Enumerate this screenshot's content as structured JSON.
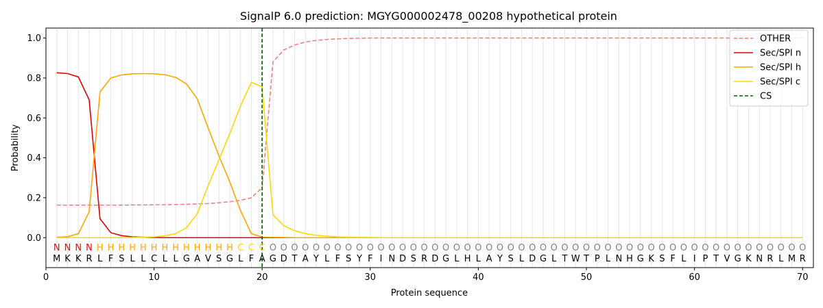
{
  "chart_data": {
    "type": "line",
    "title": "SignalP 6.0 prediction: MGYG000002478_00208 hypothetical protein",
    "xlabel": "Protein sequence",
    "ylabel": "Probability",
    "xlim": [
      0,
      71
    ],
    "ylim": [
      -0.15,
      1.05
    ],
    "x_ticks": [
      0,
      10,
      20,
      30,
      40,
      50,
      60,
      70
    ],
    "y_ticks": [
      0.0,
      0.2,
      0.4,
      0.6,
      0.8,
      1.0
    ],
    "x_tick_labels": [
      "0",
      "10",
      "20",
      "30",
      "40",
      "50",
      "60",
      "70"
    ],
    "y_tick_labels": [
      "0.0",
      "0.2",
      "0.4",
      "0.6",
      "0.8",
      "1.0"
    ],
    "grid": "vertical lines at each residue",
    "legend_position": "top-right",
    "sequence": [
      "M",
      "K",
      "K",
      "R",
      "L",
      "F",
      "S",
      "L",
      "L",
      "C",
      "L",
      "L",
      "G",
      "A",
      "V",
      "S",
      "G",
      "L",
      "F",
      "A",
      "G",
      "D",
      "T",
      "A",
      "Y",
      "L",
      "F",
      "S",
      "Y",
      "F",
      "I",
      "N",
      "D",
      "S",
      "R",
      "D",
      "G",
      "L",
      "H",
      "L",
      "A",
      "Y",
      "S",
      "L",
      "D",
      "G",
      "L",
      "T",
      "W",
      "T",
      "P",
      "L",
      "N",
      "H",
      "G",
      "K",
      "S",
      "F",
      "L",
      "I",
      "P",
      "T",
      "V",
      "G",
      "K",
      "N",
      "R",
      "L",
      "M",
      "R"
    ],
    "labels": [
      "N",
      "N",
      "N",
      "N",
      "H",
      "H",
      "H",
      "H",
      "H",
      "H",
      "H",
      "H",
      "H",
      "H",
      "H",
      "H",
      "H",
      "C",
      "C",
      "C",
      "O",
      "O",
      "O",
      "O",
      "O",
      "O",
      "O",
      "O",
      "O",
      "O",
      "O",
      "O",
      "O",
      "O",
      "O",
      "O",
      "O",
      "O",
      "O",
      "O",
      "O",
      "O",
      "O",
      "O",
      "O",
      "O",
      "O",
      "O",
      "O",
      "O",
      "O",
      "O",
      "O",
      "O",
      "O",
      "O",
      "O",
      "O",
      "O",
      "O",
      "O",
      "O",
      "O",
      "O",
      "O",
      "O",
      "O",
      "O",
      "O",
      "O"
    ],
    "label_colors": {
      "N": "#ff0000",
      "H": "#ffa500",
      "C": "#ffd700",
      "O": "#808080"
    },
    "cleavage_site": 20,
    "series": [
      {
        "name": "OTHER",
        "color": "#f08080",
        "style": "dashed",
        "values": [
          0.163,
          0.163,
          0.163,
          0.163,
          0.163,
          0.163,
          0.163,
          0.164,
          0.164,
          0.165,
          0.165,
          0.166,
          0.167,
          0.169,
          0.171,
          0.175,
          0.18,
          0.187,
          0.2,
          0.25,
          0.88,
          0.94,
          0.965,
          0.98,
          0.988,
          0.993,
          0.996,
          0.998,
          0.999,
          1.0,
          1.0,
          1.0,
          1.0,
          1.0,
          1.0,
          1.0,
          1.0,
          1.0,
          1.0,
          1.0,
          1.0,
          1.0,
          1.0,
          1.0,
          1.0,
          1.0,
          1.0,
          1.0,
          1.0,
          1.0,
          1.0,
          1.0,
          1.0,
          1.0,
          1.0,
          1.0,
          1.0,
          1.0,
          1.0,
          1.0,
          1.0,
          1.0,
          1.0,
          1.0,
          1.0,
          1.0,
          1.0,
          1.0,
          1.0,
          1.0
        ]
      },
      {
        "name": "Sec/SPI n",
        "color": "#e00000",
        "style": "solid",
        "values": [
          0.826,
          0.822,
          0.805,
          0.69,
          0.095,
          0.025,
          0.01,
          0.004,
          0.002,
          0.001,
          0.0,
          0.0,
          0.0,
          0.0,
          0.0,
          0.0,
          0.0,
          0.0,
          0.0,
          0.0,
          0.0,
          0.0,
          0.0,
          0.0,
          0.0,
          0.0,
          0.0,
          0.0,
          0.0,
          0.0,
          0.0,
          0.0,
          0.0,
          0.0,
          0.0,
          0.0,
          0.0,
          0.0,
          0.0,
          0.0,
          0.0,
          0.0,
          0.0,
          0.0,
          0.0,
          0.0,
          0.0,
          0.0,
          0.0,
          0.0,
          0.0,
          0.0,
          0.0,
          0.0,
          0.0,
          0.0,
          0.0,
          0.0,
          0.0,
          0.0,
          0.0,
          0.0,
          0.0,
          0.0,
          0.0,
          0.0,
          0.0,
          0.0,
          0.0,
          0.0
        ]
      },
      {
        "name": "Sec/SPI h",
        "color": "#ffa500",
        "style": "solid",
        "values": [
          0.002,
          0.005,
          0.02,
          0.13,
          0.73,
          0.8,
          0.815,
          0.821,
          0.822,
          0.821,
          0.816,
          0.803,
          0.77,
          0.695,
          0.55,
          0.41,
          0.28,
          0.135,
          0.02,
          0.003,
          0.002,
          0.001,
          0.0,
          0.0,
          0.0,
          0.0,
          0.0,
          0.0,
          0.0,
          0.0,
          0.0,
          0.0,
          0.0,
          0.0,
          0.0,
          0.0,
          0.0,
          0.0,
          0.0,
          0.0,
          0.0,
          0.0,
          0.0,
          0.0,
          0.0,
          0.0,
          0.0,
          0.0,
          0.0,
          0.0,
          0.0,
          0.0,
          0.0,
          0.0,
          0.0,
          0.0,
          0.0,
          0.0,
          0.0,
          0.0,
          0.0,
          0.0,
          0.0,
          0.0,
          0.0,
          0.0,
          0.0,
          0.0,
          0.0,
          0.0
        ]
      },
      {
        "name": "Sec/SPI c",
        "color": "#ffd700",
        "style": "solid",
        "values": [
          0.0,
          0.0,
          0.0,
          0.0,
          0.0,
          0.0,
          0.0,
          0.001,
          0.002,
          0.004,
          0.009,
          0.02,
          0.05,
          0.12,
          0.26,
          0.39,
          0.52,
          0.66,
          0.778,
          0.755,
          0.115,
          0.06,
          0.035,
          0.02,
          0.012,
          0.007,
          0.004,
          0.002,
          0.001,
          0.001,
          0.0,
          0.0,
          0.0,
          0.0,
          0.0,
          0.0,
          0.0,
          0.0,
          0.0,
          0.0,
          0.0,
          0.0,
          0.0,
          0.0,
          0.0,
          0.0,
          0.0,
          0.0,
          0.0,
          0.0,
          0.0,
          0.0,
          0.0,
          0.0,
          0.0,
          0.0,
          0.0,
          0.0,
          0.0,
          0.0,
          0.0,
          0.0,
          0.0,
          0.0,
          0.0,
          0.0,
          0.0,
          0.0,
          0.0,
          0.0
        ]
      },
      {
        "name": "CS",
        "color": "#006400",
        "style": "dashed"
      }
    ]
  }
}
